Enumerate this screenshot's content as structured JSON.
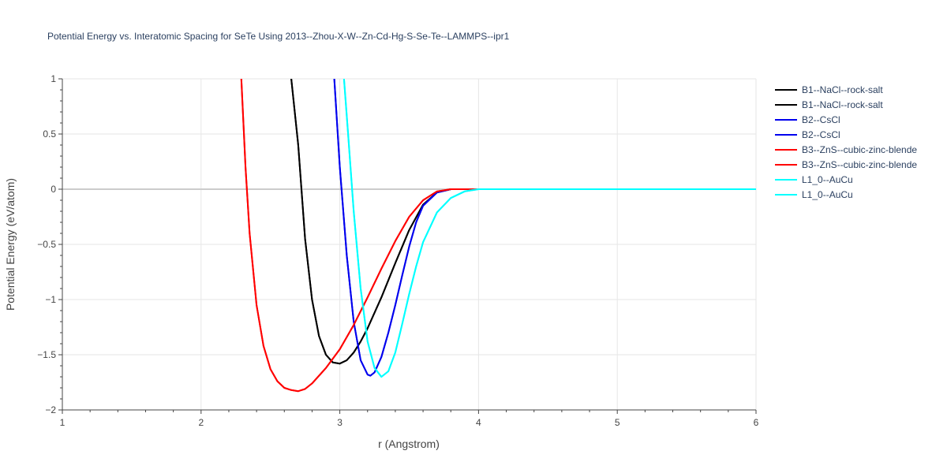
{
  "chart_data": {
    "type": "line",
    "title": "Potential Energy vs. Interatomic Spacing for SeTe Using 2013--Zhou-X-W--Zn-Cd-Hg-S-Se-Te--LAMMPS--ipr1",
    "xlabel": "r (Angstrom)",
    "ylabel": "Potential Energy (eV/atom)",
    "xlim": [
      1,
      6
    ],
    "ylim": [
      -2,
      1
    ],
    "x_ticks": [
      "1",
      "2",
      "3",
      "4",
      "5",
      "6"
    ],
    "y_ticks": [
      "1",
      "0.5",
      "0",
      "−0.5",
      "−1",
      "−1.5",
      "−2"
    ],
    "grid": true,
    "legend_position": "top-right",
    "series": [
      {
        "name": "B1--NaCl--rock-salt",
        "color": "#000000",
        "x": [
          2.65,
          2.7,
          2.75,
          2.8,
          2.85,
          2.9,
          2.95,
          3.0,
          3.05,
          3.1,
          3.15,
          3.2,
          3.3,
          3.4,
          3.5,
          3.6,
          3.7,
          3.8,
          4.0,
          6.0
        ],
        "y": [
          1.0,
          0.4,
          -0.45,
          -1.0,
          -1.33,
          -1.5,
          -1.57,
          -1.58,
          -1.55,
          -1.48,
          -1.38,
          -1.26,
          -0.98,
          -0.67,
          -0.37,
          -0.14,
          -0.03,
          0.0,
          0.0,
          0.0
        ]
      },
      {
        "name": "B1--NaCl--rock-salt",
        "color": "#000000",
        "x": [
          2.65,
          2.7,
          2.75,
          2.8,
          2.85,
          2.9,
          2.95,
          3.0,
          3.05,
          3.1,
          3.15,
          3.2,
          3.3,
          3.4,
          3.5,
          3.6,
          3.7,
          3.8,
          4.0,
          6.0
        ],
        "y": [
          1.0,
          0.4,
          -0.45,
          -1.0,
          -1.33,
          -1.5,
          -1.57,
          -1.58,
          -1.55,
          -1.48,
          -1.38,
          -1.26,
          -0.98,
          -0.67,
          -0.37,
          -0.14,
          -0.03,
          0.0,
          0.0,
          0.0
        ]
      },
      {
        "name": "B2--CsCl",
        "color": "#0000ee",
        "x": [
          2.96,
          3.0,
          3.05,
          3.1,
          3.15,
          3.2,
          3.22,
          3.25,
          3.3,
          3.35,
          3.4,
          3.45,
          3.5,
          3.55,
          3.6,
          3.7,
          3.8,
          4.0,
          6.0
        ],
        "y": [
          1.0,
          0.2,
          -0.6,
          -1.2,
          -1.55,
          -1.68,
          -1.69,
          -1.66,
          -1.52,
          -1.3,
          -1.05,
          -0.78,
          -0.52,
          -0.3,
          -0.15,
          -0.03,
          0.0,
          0.0,
          0.0
        ]
      },
      {
        "name": "B2--CsCl",
        "color": "#0000ee",
        "x": [
          2.96,
          3.0,
          3.05,
          3.1,
          3.15,
          3.2,
          3.22,
          3.25,
          3.3,
          3.35,
          3.4,
          3.45,
          3.5,
          3.55,
          3.6,
          3.7,
          3.8,
          4.0,
          6.0
        ],
        "y": [
          1.0,
          0.2,
          -0.6,
          -1.2,
          -1.55,
          -1.68,
          -1.69,
          -1.66,
          -1.52,
          -1.3,
          -1.05,
          -0.78,
          -0.52,
          -0.3,
          -0.15,
          -0.03,
          0.0,
          0.0,
          0.0
        ]
      },
      {
        "name": "B3--ZnS--cubic-zinc-blende",
        "color": "#ff0000",
        "x": [
          2.29,
          2.32,
          2.35,
          2.4,
          2.45,
          2.5,
          2.55,
          2.6,
          2.65,
          2.7,
          2.75,
          2.8,
          2.9,
          3.0,
          3.1,
          3.2,
          3.3,
          3.4,
          3.5,
          3.6,
          3.7,
          3.8,
          4.0,
          6.0
        ],
        "y": [
          1.0,
          0.2,
          -0.4,
          -1.05,
          -1.42,
          -1.63,
          -1.74,
          -1.8,
          -1.82,
          -1.83,
          -1.81,
          -1.76,
          -1.62,
          -1.45,
          -1.23,
          -0.98,
          -0.72,
          -0.47,
          -0.25,
          -0.1,
          -0.02,
          0.0,
          0.0,
          0.0
        ]
      },
      {
        "name": "B3--ZnS--cubic-zinc-blende",
        "color": "#ff0000",
        "x": [
          2.29,
          2.32,
          2.35,
          2.4,
          2.45,
          2.5,
          2.55,
          2.6,
          2.65,
          2.7,
          2.75,
          2.8,
          2.9,
          3.0,
          3.1,
          3.2,
          3.3,
          3.4,
          3.5,
          3.6,
          3.7,
          3.8,
          4.0,
          6.0
        ],
        "y": [
          1.0,
          0.2,
          -0.4,
          -1.05,
          -1.42,
          -1.63,
          -1.74,
          -1.8,
          -1.82,
          -1.83,
          -1.81,
          -1.76,
          -1.62,
          -1.45,
          -1.23,
          -0.98,
          -0.72,
          -0.47,
          -0.25,
          -0.1,
          -0.02,
          0.0,
          0.0,
          0.0
        ]
      },
      {
        "name": "L1_0--AuCu",
        "color": "#00ffff",
        "x": [
          3.03,
          3.06,
          3.1,
          3.15,
          3.2,
          3.25,
          3.3,
          3.35,
          3.4,
          3.45,
          3.5,
          3.55,
          3.6,
          3.7,
          3.8,
          3.9,
          4.0,
          4.1,
          4.2,
          6.0
        ],
        "y": [
          1.0,
          0.5,
          -0.2,
          -0.9,
          -1.38,
          -1.62,
          -1.7,
          -1.65,
          -1.48,
          -1.22,
          -0.95,
          -0.7,
          -0.48,
          -0.21,
          -0.08,
          -0.02,
          0.0,
          0.0,
          0.0,
          0.0
        ]
      },
      {
        "name": "L1_0--AuCu",
        "color": "#00ffff",
        "x": [
          3.03,
          3.06,
          3.1,
          3.15,
          3.2,
          3.25,
          3.3,
          3.35,
          3.4,
          3.45,
          3.5,
          3.55,
          3.6,
          3.7,
          3.8,
          3.9,
          4.0,
          4.1,
          4.2,
          6.0
        ],
        "y": [
          1.0,
          0.5,
          -0.2,
          -0.9,
          -1.38,
          -1.62,
          -1.7,
          -1.65,
          -1.48,
          -1.22,
          -0.95,
          -0.7,
          -0.48,
          -0.21,
          -0.08,
          -0.02,
          0.0,
          0.0,
          0.0,
          0.0
        ]
      }
    ]
  }
}
